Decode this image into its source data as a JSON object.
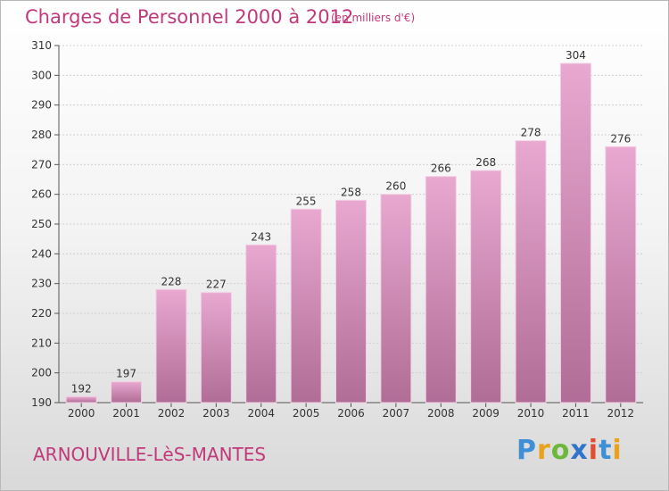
{
  "header": {
    "title": "Charges de Personnel 2000 à 2012",
    "subtitle": "(en milliers d'€)"
  },
  "footer": {
    "town": "ARNOUVILLE-LèS-MANTES",
    "brand_letters": [
      "P",
      "r",
      "o",
      "x",
      "i",
      "t",
      "i"
    ]
  },
  "colors": {
    "bar_top": "#e8a8d0",
    "bar_bottom": "#b06d96",
    "accent": "#c0397a"
  },
  "chart_data": {
    "type": "bar",
    "title": "Charges de Personnel 2000 à 2012",
    "subtitle": "(en milliers d'€)",
    "categories": [
      "2000",
      "2001",
      "2002",
      "2003",
      "2004",
      "2005",
      "2006",
      "2007",
      "2008",
      "2009",
      "2010",
      "2011",
      "2012"
    ],
    "values": [
      192,
      197,
      228,
      227,
      243,
      255,
      258,
      260,
      266,
      268,
      278,
      304,
      276
    ],
    "ylim": [
      190,
      310
    ],
    "yticks": [
      190,
      200,
      210,
      220,
      230,
      240,
      250,
      260,
      270,
      280,
      290,
      300,
      310
    ],
    "grid": true,
    "data_labels": true
  }
}
